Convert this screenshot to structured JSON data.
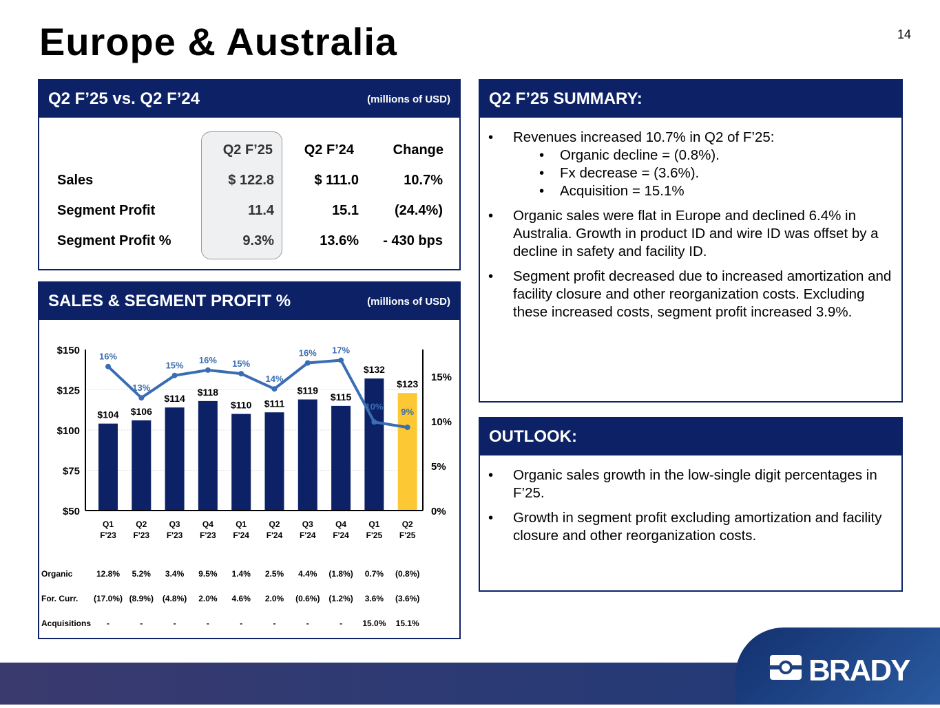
{
  "title": "Europe & Australia",
  "page_number": "14",
  "comparison": {
    "header": "Q2 F’25 vs. Q2 F’24",
    "units": "(millions of USD)",
    "columns": [
      "Q2 F’25",
      "Q2 F’24",
      "Change"
    ],
    "rows": [
      {
        "label": "Sales",
        "values": [
          "$ 122.8",
          "$ 111.0",
          "10.7%"
        ]
      },
      {
        "label": "Segment Profit",
        "values": [
          "11.4",
          "15.1",
          "(24.4%)"
        ]
      },
      {
        "label": "Segment Profit %",
        "values": [
          "9.3%",
          "13.6%",
          "- 430 bps"
        ]
      }
    ]
  },
  "chart_panel": {
    "header": "SALES & SEGMENT PROFIT %",
    "units": "(millions of USD)"
  },
  "chart_data": {
    "type": "bar+line",
    "categories": [
      [
        "Q1",
        "F'23"
      ],
      [
        "Q2",
        "F'23"
      ],
      [
        "Q3",
        "F'23"
      ],
      [
        "Q4",
        "F'23"
      ],
      [
        "Q1",
        "F'24"
      ],
      [
        "Q2",
        "F'24"
      ],
      [
        "Q3",
        "F'24"
      ],
      [
        "Q4",
        "F'24"
      ],
      [
        "Q1",
        "F'25"
      ],
      [
        "Q2",
        "F'25"
      ]
    ],
    "series": [
      {
        "name": "Sales",
        "axis": "left",
        "values": [
          104,
          106,
          114,
          118,
          110,
          111,
          119,
          115,
          132,
          123
        ],
        "labels": [
          "$104",
          "$106",
          "$114",
          "$118",
          "$110",
          "$111",
          "$119",
          "$115",
          "$132",
          "$123"
        ]
      },
      {
        "name": "Segment Profit %",
        "axis": "right",
        "values": [
          16.1,
          12.6,
          15.1,
          15.7,
          15.3,
          13.6,
          16.5,
          16.8,
          9.9,
          9.3
        ],
        "labels": [
          "16%",
          "13%",
          "15%",
          "16%",
          "15%",
          "14%",
          "16%",
          "17%",
          "10%",
          "9%"
        ]
      }
    ],
    "ylim": [
      50,
      150
    ],
    "yticks": [
      "$150",
      "$125",
      "$100",
      "$75",
      "$50"
    ],
    "y2lim": [
      0,
      18
    ],
    "y2ticks": [
      "15%",
      "10%",
      "5%",
      "0%"
    ],
    "colors": {
      "bar": "#0d2266",
      "highlight": "#fcc934",
      "line": "#3a6db3"
    }
  },
  "growth_table": {
    "rows": [
      {
        "label": "Organic",
        "values": [
          "12.8%",
          "5.2%",
          "3.4%",
          "9.5%",
          "1.4%",
          "2.5%",
          "4.4%",
          "(1.8%)",
          "0.7%",
          "(0.8%)"
        ]
      },
      {
        "label": "For. Curr.",
        "values": [
          "(17.0%)",
          "(8.9%)",
          "(4.8%)",
          "2.0%",
          "4.6%",
          "2.0%",
          "(0.6%)",
          "(1.2%)",
          "3.6%",
          "(3.6%)"
        ]
      },
      {
        "label": "Acquisitions",
        "values": [
          "-",
          "-",
          "-",
          "-",
          "-",
          "-",
          "-",
          "-",
          "15.0%",
          "15.1%"
        ]
      }
    ]
  },
  "summary": {
    "header": "Q2 F’25 SUMMARY:",
    "b1": "Revenues increased 10.7% in Q2 of F’25:",
    "subs": [
      "Organic decline = (0.8%).",
      "Fx decrease = (3.6%).",
      "Acquisition = 15.1%"
    ],
    "b2": "Organic sales were flat in Europe and declined 6.4% in Australia.  Growth in product ID and wire ID was offset by a decline in safety and facility ID.",
    "b3": "Segment profit decreased due to increased amortization and facility closure and other reorganization costs.  Excluding these increased costs, segment profit increased 3.9%."
  },
  "outlook": {
    "header": "OUTLOOK:",
    "b1": "Organic sales growth in the low-single digit percentages in F’25.",
    "b2": "Growth in segment profit excluding amortization and facility closure and other reorganization costs."
  },
  "logo": {
    "text": "BRADY"
  }
}
